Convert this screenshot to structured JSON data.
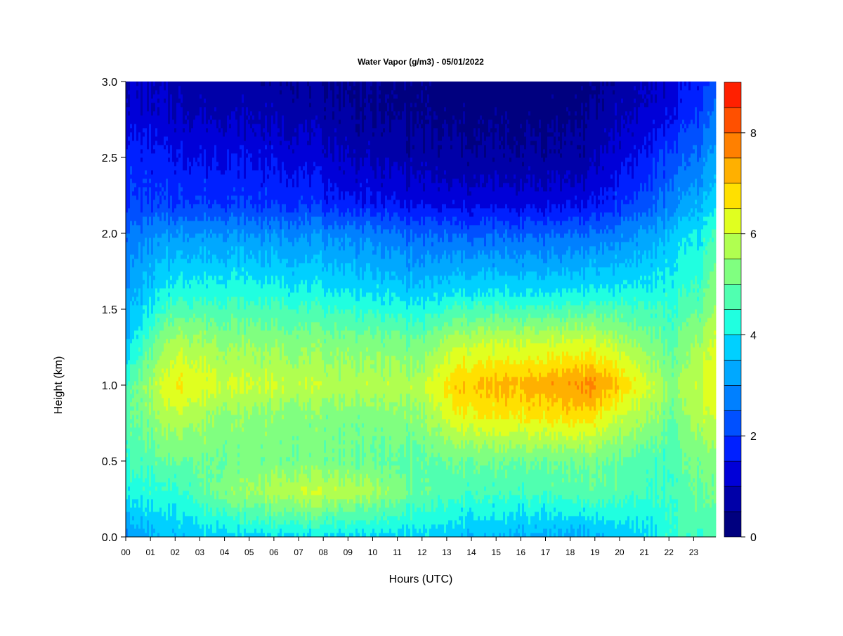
{
  "chart_data": {
    "type": "heatmap",
    "title": "Water Vapor (g/m3) - 05/01/2022",
    "xlabel": "Hours (UTC)",
    "ylabel": "Height (km)",
    "x_ticks": [
      "00",
      "01",
      "02",
      "03",
      "04",
      "05",
      "06",
      "07",
      "08",
      "09",
      "10",
      "11",
      "12",
      "13",
      "14",
      "15",
      "16",
      "17",
      "18",
      "19",
      "20",
      "21",
      "22",
      "23"
    ],
    "y_ticks": [
      "0.0",
      "0.5",
      "1.0",
      "1.5",
      "2.0",
      "2.5",
      "3.0"
    ],
    "xlim": [
      0,
      23.9
    ],
    "ylim": [
      0,
      3.0
    ],
    "grid": false,
    "colorbar": {
      "min": 0,
      "max": 9,
      "step": 0.5,
      "ticks": [
        "0",
        "2",
        "4",
        "6",
        "8"
      ],
      "colors": [
        "#00007f",
        "#0000a8",
        "#0000d8",
        "#0020ff",
        "#0050ff",
        "#0080ff",
        "#00a8ff",
        "#00d0ff",
        "#20ffe0",
        "#50ffb0",
        "#80ff80",
        "#b0ff50",
        "#e0ff20",
        "#ffe000",
        "#ffb000",
        "#ff8000",
        "#ff5000",
        "#ff2000",
        "#e00000",
        "#c00000",
        "#7f0000"
      ]
    },
    "profile_key": {
      "heights_km": [
        0.0,
        0.3,
        0.5,
        0.8,
        1.0,
        1.3,
        1.6,
        2.0,
        2.2,
        2.5,
        2.8,
        3.0
      ],
      "hours_utc": [
        0,
        2,
        4,
        7,
        9.5,
        12,
        13.5,
        16,
        18.7,
        19.7,
        21.5,
        22.1,
        23.2,
        23.9
      ]
    },
    "values": [
      [
        3.0,
        4.2,
        4.5,
        4.8,
        4.6,
        3.6,
        3.2,
        2.6,
        2.0,
        1.8,
        1.2,
        1.0
      ],
      [
        3.6,
        4.4,
        5.0,
        5.9,
        6.6,
        5.7,
        4.3,
        3.0,
        2.0,
        1.5,
        1.0,
        0.8
      ],
      [
        3.8,
        5.3,
        5.1,
        5.4,
        6.1,
        5.4,
        4.4,
        3.0,
        2.0,
        1.5,
        0.9,
        0.7
      ],
      [
        4.0,
        6.0,
        5.2,
        5.3,
        5.9,
        5.3,
        4.2,
        2.9,
        1.9,
        1.3,
        0.8,
        0.6
      ],
      [
        3.8,
        5.8,
        5.0,
        5.2,
        5.8,
        5.2,
        4.0,
        2.8,
        1.6,
        0.9,
        0.5,
        0.4
      ],
      [
        3.8,
        4.9,
        4.8,
        5.4,
        5.8,
        5.0,
        3.7,
        2.4,
        1.4,
        0.7,
        0.4,
        0.3
      ],
      [
        3.6,
        4.6,
        5.0,
        6.4,
        7.0,
        5.8,
        4.0,
        2.4,
        1.3,
        0.6,
        0.3,
        0.2
      ],
      [
        3.4,
        4.6,
        5.0,
        6.6,
        7.2,
        5.9,
        4.0,
        2.4,
        1.3,
        0.6,
        0.3,
        0.2
      ],
      [
        3.3,
        4.8,
        5.1,
        6.8,
        7.6,
        6.0,
        4.1,
        2.5,
        1.4,
        0.7,
        0.4,
        0.3
      ],
      [
        3.6,
        4.8,
        5.0,
        6.2,
        7.2,
        5.8,
        4.2,
        2.7,
        1.8,
        1.2,
        0.8,
        0.6
      ],
      [
        4.0,
        4.4,
        4.6,
        5.4,
        5.8,
        5.0,
        4.2,
        3.2,
        2.4,
        1.8,
        1.2,
        1.0
      ],
      [
        4.4,
        4.6,
        4.6,
        5.0,
        5.2,
        4.8,
        4.3,
        3.6,
        2.8,
        2.2,
        1.4,
        1.2
      ],
      [
        4.6,
        5.0,
        5.2,
        5.8,
        6.0,
        5.6,
        4.6,
        4.0,
        3.4,
        2.6,
        2.0,
        1.6
      ],
      [
        4.6,
        5.0,
        5.2,
        6.0,
        6.4,
        6.0,
        5.4,
        4.6,
        3.8,
        3.2,
        2.6,
        2.2
      ]
    ]
  }
}
